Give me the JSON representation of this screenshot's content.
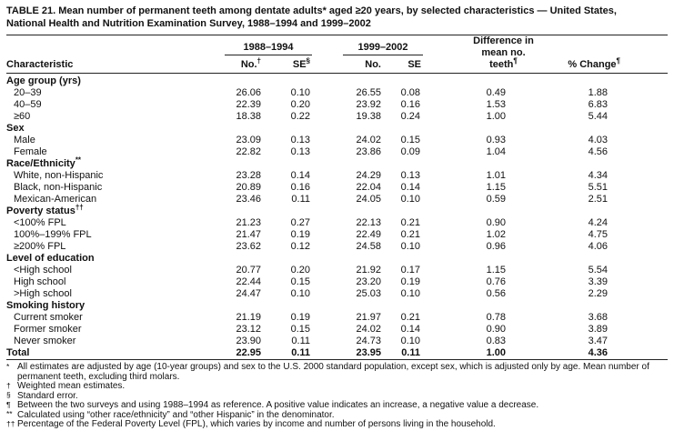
{
  "title": {
    "line1": "TABLE 21. Mean number of permanent teeth among dentate adults* aged ≥20 years, by selected characteristics — United States,",
    "line2": "National Health and Nutrition Examination Survey, 1988–1994 and 1999–2002"
  },
  "table": {
    "header": {
      "characteristic": "Characteristic",
      "period1": "1988–1994",
      "period2": "1999–2002",
      "no1": {
        "text": "No.",
        "sup": "†"
      },
      "se1": {
        "text": "SE",
        "sup": "§"
      },
      "no2": {
        "text": "No.",
        "sup": ""
      },
      "se2": {
        "text": "SE",
        "sup": ""
      },
      "diff_line1": "Difference in",
      "diff_line2": {
        "text": "mean no. teeth",
        "sup": "¶"
      },
      "pct_change": {
        "text": "% Change",
        "sup": "¶"
      }
    },
    "sections": [
      {
        "label": "Age group (yrs)",
        "sup": "",
        "rows": [
          {
            "label": "20–39",
            "values": [
              "26.06",
              "0.10",
              "26.55",
              "0.08",
              "0.49",
              "1.88"
            ]
          },
          {
            "label": "40–59",
            "values": [
              "22.39",
              "0.20",
              "23.92",
              "0.16",
              "1.53",
              "6.83"
            ]
          },
          {
            "label": "≥60",
            "values": [
              "18.38",
              "0.22",
              "19.38",
              "0.24",
              "1.00",
              "5.44"
            ]
          }
        ]
      },
      {
        "label": "Sex",
        "sup": "",
        "rows": [
          {
            "label": "Male",
            "values": [
              "23.09",
              "0.13",
              "24.02",
              "0.15",
              "0.93",
              "4.03"
            ]
          },
          {
            "label": "Female",
            "values": [
              "22.82",
              "0.13",
              "23.86",
              "0.09",
              "1.04",
              "4.56"
            ]
          }
        ]
      },
      {
        "label": "Race/Ethnicity",
        "sup": "**",
        "rows": [
          {
            "label": "White, non-Hispanic",
            "values": [
              "23.28",
              "0.14",
              "24.29",
              "0.13",
              "1.01",
              "4.34"
            ]
          },
          {
            "label": "Black, non-Hispanic",
            "values": [
              "20.89",
              "0.16",
              "22.04",
              "0.14",
              "1.15",
              "5.51"
            ]
          },
          {
            "label": "Mexican-American",
            "values": [
              "23.46",
              "0.11",
              "24.05",
              "0.10",
              "0.59",
              "2.51"
            ]
          }
        ]
      },
      {
        "label": "Poverty status",
        "sup": "††",
        "rows": [
          {
            "label": "<100% FPL",
            "values": [
              "21.23",
              "0.27",
              "22.13",
              "0.21",
              "0.90",
              "4.24"
            ]
          },
          {
            "label": "100%–199% FPL",
            "values": [
              "21.47",
              "0.19",
              "22.49",
              "0.21",
              "1.02",
              "4.75"
            ]
          },
          {
            "label": "≥200% FPL",
            "values": [
              "23.62",
              "0.12",
              "24.58",
              "0.10",
              "0.96",
              "4.06"
            ]
          }
        ]
      },
      {
        "label": "Level of education",
        "sup": "",
        "rows": [
          {
            "label": "<High school",
            "values": [
              "20.77",
              "0.20",
              "21.92",
              "0.17",
              "1.15",
              "5.54"
            ]
          },
          {
            "label": "High school",
            "values": [
              "22.44",
              "0.15",
              "23.20",
              "0.19",
              "0.76",
              "3.39"
            ]
          },
          {
            "label": ">High school",
            "values": [
              "24.47",
              "0.10",
              "25.03",
              "0.10",
              "0.56",
              "2.29"
            ]
          }
        ]
      },
      {
        "label": "Smoking history",
        "sup": "",
        "rows": [
          {
            "label": "Current smoker",
            "values": [
              "21.19",
              "0.19",
              "21.97",
              "0.21",
              "0.78",
              "3.68"
            ]
          },
          {
            "label": "Former smoker",
            "values": [
              "23.12",
              "0.15",
              "24.02",
              "0.14",
              "0.90",
              "3.89"
            ]
          },
          {
            "label": "Never smoker",
            "values": [
              "23.90",
              "0.11",
              "24.73",
              "0.10",
              "0.83",
              "3.47"
            ]
          }
        ]
      }
    ],
    "total": {
      "label": "Total",
      "values": [
        "22.95",
        "0.11",
        "23.95",
        "0.11",
        "1.00",
        "4.36"
      ]
    }
  },
  "footnotes": [
    {
      "symbol": "*",
      "text": "All estimates are adjusted by age (10-year groups) and sex to the U.S. 2000 standard population, except sex, which is adjusted only by age. Mean number of permanent teeth, excluding third molars."
    },
    {
      "symbol": "†",
      "text": "Weighted mean estimates."
    },
    {
      "symbol": "§",
      "text": "Standard error."
    },
    {
      "symbol": "¶",
      "text": "Between the two surveys and using 1988–1994 as reference. A positive value indicates an increase, a negative value a decrease."
    },
    {
      "symbol": "**",
      "text": "Calculated using “other race/ethnicity” and “other Hispanic” in the denominator."
    },
    {
      "symbol": "††",
      "text": "Percentage of the Federal Poverty Level (FPL), which varies by income and number of persons living in the household."
    }
  ]
}
